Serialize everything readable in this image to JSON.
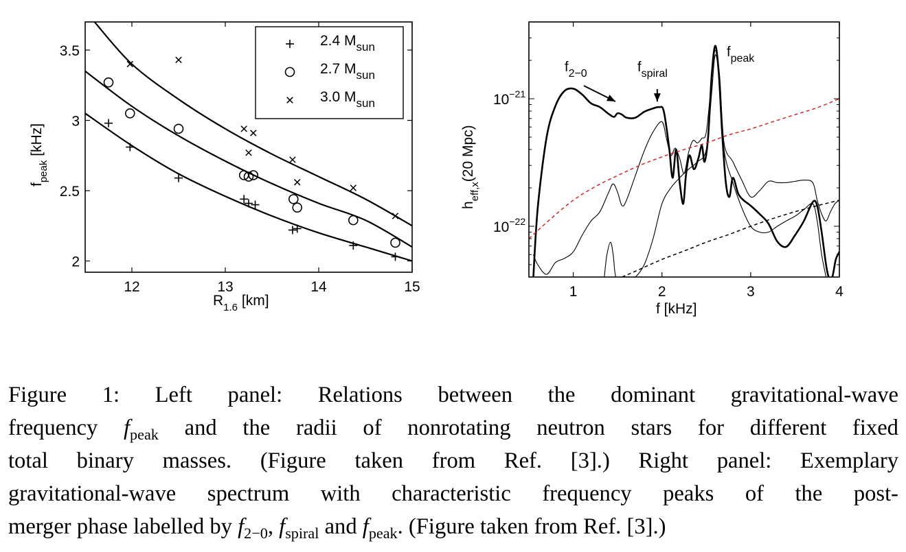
{
  "chart_data": [
    {
      "type": "scatter",
      "panel": "left",
      "xlabel_main": "R",
      "xlabel_sub": "1.6",
      "xlabel_unit": " [km]",
      "ylabel_main": "f",
      "ylabel_sub": "peak",
      "ylabel_unit": " [kHz]",
      "xlim": [
        11.5,
        15
      ],
      "ylim": [
        1.92,
        3.7
      ],
      "xticks": [
        12,
        13,
        14,
        15
      ],
      "yticks": [
        2,
        2.5,
        3,
        3.5
      ],
      "ytick_labels": [
        "2",
        "2.5",
        "3",
        "3.5"
      ],
      "grid": false,
      "legend_position": "top-right",
      "series": [
        {
          "name": "2.4 M",
          "name_sub": "sun",
          "marker": "plus",
          "points": [
            [
              11.75,
              2.98
            ],
            [
              11.98,
              2.81
            ],
            [
              12.5,
              2.59
            ],
            [
              13.2,
              2.44
            ],
            [
              13.25,
              2.41
            ],
            [
              13.32,
              2.4
            ],
            [
              13.72,
              2.22
            ],
            [
              13.77,
              2.23
            ],
            [
              14.37,
              2.11
            ],
            [
              14.82,
              2.03
            ]
          ],
          "fit": [
            [
              11.5,
              3.05
            ],
            [
              12.0,
              2.82
            ],
            [
              12.5,
              2.62
            ],
            [
              13.0,
              2.46
            ],
            [
              13.5,
              2.32
            ],
            [
              14.0,
              2.2
            ],
            [
              14.5,
              2.1
            ],
            [
              15.0,
              2.0
            ]
          ]
        },
        {
          "name": "2.7 M",
          "name_sub": "sun",
          "marker": "circle",
          "points": [
            [
              11.75,
              3.27
            ],
            [
              11.98,
              3.05
            ],
            [
              12.5,
              2.94
            ],
            [
              13.2,
              2.61
            ],
            [
              13.25,
              2.6
            ],
            [
              13.3,
              2.61
            ],
            [
              13.73,
              2.44
            ],
            [
              13.77,
              2.38
            ],
            [
              14.37,
              2.29
            ],
            [
              14.82,
              2.13
            ]
          ],
          "fit": [
            [
              11.5,
              3.35
            ],
            [
              12.0,
              3.1
            ],
            [
              12.5,
              2.89
            ],
            [
              13.0,
              2.71
            ],
            [
              13.5,
              2.55
            ],
            [
              14.0,
              2.41
            ],
            [
              14.5,
              2.29
            ],
            [
              15.0,
              2.1
            ]
          ]
        },
        {
          "name": "3.0 M",
          "name_sub": "sun",
          "marker": "cross",
          "points": [
            [
              11.98,
              3.4
            ],
            [
              12.5,
              3.43
            ],
            [
              13.2,
              2.94
            ],
            [
              13.25,
              2.77
            ],
            [
              13.3,
              2.91
            ],
            [
              13.72,
              2.72
            ],
            [
              13.77,
              2.56
            ],
            [
              14.37,
              2.52
            ],
            [
              14.82,
              2.32
            ]
          ],
          "fit": [
            [
              11.6,
              3.7
            ],
            [
              12.0,
              3.4
            ],
            [
              12.5,
              3.15
            ],
            [
              13.0,
              2.94
            ],
            [
              13.5,
              2.76
            ],
            [
              14.0,
              2.6
            ],
            [
              14.5,
              2.44
            ],
            [
              15.0,
              2.25
            ]
          ]
        }
      ]
    },
    {
      "type": "line",
      "panel": "right",
      "yscale": "log",
      "xlabel": "f [kHz]",
      "ylabel_main": "h",
      "ylabel_sub": "eff,x",
      "ylabel_unit": "(20 Mpc)",
      "xlim": [
        0.5,
        4
      ],
      "ylim": [
        4e-23,
        4e-21
      ],
      "xticks": [
        1,
        2,
        3,
        4
      ],
      "yticks": [
        1e-22,
        1e-21
      ],
      "ytick_base": "10",
      "ytick_exponents": [
        "−22",
        "−21"
      ],
      "grid": false,
      "annotations": [
        {
          "main": "f",
          "sub": "2−0",
          "x": 1.46,
          "y": 8.2e-22
        },
        {
          "main": "f",
          "sub": "spiral",
          "x": 1.97,
          "y": 8.6e-22
        },
        {
          "main": "f",
          "sub": "peak",
          "x": 2.6,
          "y": 2.6e-21
        }
      ],
      "series": [
        {
          "name": "",
          "color": "#000000",
          "style": "thick",
          "points": [
            [
              0.55,
              4e-23
            ],
            [
              0.6,
              1.4e-22
            ],
            [
              0.7,
              5e-22
            ],
            [
              0.8,
              8.8e-22
            ],
            [
              0.9,
              1.15e-21
            ],
            [
              1.0,
              1.2e-21
            ],
            [
              1.1,
              1.08e-21
            ],
            [
              1.2,
              9.2e-22
            ],
            [
              1.3,
              8.6e-22
            ],
            [
              1.4,
              7.6e-22
            ],
            [
              1.46,
              7.2e-22
            ],
            [
              1.5,
              7.7e-22
            ],
            [
              1.55,
              7.5e-22
            ],
            [
              1.6,
              7.1e-22
            ],
            [
              1.7,
              7.1e-22
            ],
            [
              1.8,
              7.9e-22
            ],
            [
              1.9,
              8.4e-22
            ],
            [
              1.97,
              8.6e-22
            ],
            [
              2.02,
              8e-22
            ],
            [
              2.08,
              4.2e-22
            ],
            [
              2.12,
              2.4e-22
            ],
            [
              2.16,
              4e-22
            ],
            [
              2.2,
              2.2e-22
            ],
            [
              2.24,
              1.5e-22
            ],
            [
              2.27,
              2.5e-22
            ],
            [
              2.31,
              3.6e-22
            ],
            [
              2.36,
              2.8e-22
            ],
            [
              2.41,
              3.4e-22
            ],
            [
              2.45,
              4.3e-22
            ],
            [
              2.48,
              3.2e-22
            ],
            [
              2.52,
              5e-22
            ],
            [
              2.56,
              1.5e-21
            ],
            [
              2.6,
              2.6e-21
            ],
            [
              2.64,
              1.6e-21
            ],
            [
              2.68,
              5.2e-22
            ],
            [
              2.72,
              2.2e-22
            ],
            [
              2.76,
              1.7e-22
            ],
            [
              2.8,
              2.4e-22
            ],
            [
              2.86,
              1.8e-22
            ],
            [
              2.92,
              1.6e-22
            ],
            [
              3.0,
              1.45e-22
            ],
            [
              3.1,
              1.25e-22
            ],
            [
              3.2,
              1.05e-22
            ],
            [
              3.3,
              7.6e-23
            ],
            [
              3.4,
              6.9e-23
            ],
            [
              3.5,
              8.5e-23
            ],
            [
              3.6,
              1.1e-22
            ],
            [
              3.7,
              1.55e-22
            ],
            [
              3.75,
              1.45e-22
            ],
            [
              3.8,
              9e-23
            ],
            [
              3.85,
              5e-23
            ],
            [
              3.88,
              4e-23
            ],
            [
              3.92,
              4e-23
            ],
            [
              3.96,
              5.5e-23
            ],
            [
              4.0,
              6.3e-23
            ]
          ]
        },
        {
          "name": "",
          "color": "#000000",
          "style": "thin-1",
          "points": [
            [
              0.55,
              6e-23
            ],
            [
              0.6,
              5e-23
            ],
            [
              0.7,
              4.2e-23
            ],
            [
              0.8,
              5.2e-23
            ],
            [
              0.9,
              5.6e-23
            ],
            [
              1.0,
              6.3e-23
            ],
            [
              1.1,
              8.5e-23
            ],
            [
              1.2,
              1.1e-22
            ],
            [
              1.3,
              1.3e-22
            ],
            [
              1.4,
              1.85e-22
            ],
            [
              1.45,
              2.15e-22
            ],
            [
              1.5,
              1.85e-22
            ],
            [
              1.55,
              1.45e-22
            ],
            [
              1.6,
              1.6e-22
            ],
            [
              1.7,
              2.5e-22
            ],
            [
              1.8,
              3.9e-22
            ],
            [
              1.9,
              5.5e-22
            ],
            [
              2.0,
              6.6e-22
            ],
            [
              2.05,
              4.9e-22
            ],
            [
              2.1,
              3.6e-22
            ],
            [
              2.15,
              4.1e-22
            ],
            [
              2.2,
              3.4e-22
            ],
            [
              2.25,
              2.6e-22
            ],
            [
              2.3,
              3.8e-22
            ],
            [
              2.35,
              4.7e-22
            ],
            [
              2.4,
              4.5e-22
            ],
            [
              2.45,
              4.9e-22
            ],
            [
              2.5,
              5.5e-22
            ],
            [
              2.56,
              1.4e-21
            ],
            [
              2.6,
              2.4e-21
            ],
            [
              2.65,
              1.5e-21
            ],
            [
              2.7,
              4.5e-22
            ],
            [
              2.8,
              3.2e-22
            ],
            [
              2.9,
              2.3e-22
            ],
            [
              3.0,
              1.7e-22
            ],
            [
              3.1,
              1.9e-22
            ],
            [
              3.2,
              2.25e-22
            ],
            [
              3.3,
              2.2e-22
            ],
            [
              3.4,
              2.2e-22
            ],
            [
              3.5,
              2.25e-22
            ],
            [
              3.6,
              2.3e-22
            ],
            [
              3.7,
              2.2e-22
            ],
            [
              3.75,
              1.6e-22
            ],
            [
              3.8,
              1.25e-22
            ],
            [
              3.85,
              1.1e-22
            ],
            [
              3.9,
              1.3e-22
            ],
            [
              3.95,
              1.5e-22
            ],
            [
              4.0,
              1.6e-22
            ]
          ]
        },
        {
          "name": "",
          "color": "#000000",
          "style": "thin-2",
          "points": [
            [
              1.35,
              4e-23
            ],
            [
              1.38,
              6e-23
            ],
            [
              1.42,
              7.5e-23
            ],
            [
              1.45,
              6e-23
            ],
            [
              1.48,
              4e-23
            ],
            [
              1.55,
              4e-23
            ],
            [
              1.6,
              4e-23
            ],
            [
              1.65,
              4e-23
            ],
            [
              1.7,
              4e-23
            ],
            [
              1.8,
              5e-23
            ],
            [
              1.9,
              8e-23
            ],
            [
              2.0,
              1.5e-22
            ],
            [
              2.1,
              2e-22
            ],
            [
              2.2,
              2.4e-22
            ],
            [
              2.3,
              2.8e-22
            ],
            [
              2.4,
              3.2e-22
            ],
            [
              2.5,
              4e-22
            ],
            [
              2.56,
              1.1e-21
            ],
            [
              2.6,
              2.2e-21
            ],
            [
              2.65,
              1.4e-21
            ],
            [
              2.7,
              4e-22
            ],
            [
              2.8,
              2.2e-22
            ],
            [
              2.9,
              1.4e-22
            ],
            [
              3.0,
              1e-22
            ],
            [
              3.1,
              9e-23
            ],
            [
              3.2,
              9e-23
            ],
            [
              3.3,
              1e-22
            ],
            [
              3.4,
              1.1e-22
            ],
            [
              3.5,
              1.2e-22
            ],
            [
              3.6,
              1.35e-22
            ],
            [
              3.7,
              1.5e-22
            ],
            [
              3.75,
              1.1e-22
            ],
            [
              3.8,
              6e-23
            ],
            [
              3.85,
              4e-23
            ]
          ]
        },
        {
          "name": "",
          "color": "#d62728",
          "style": "dashed",
          "points": [
            [
              0.5,
              8e-23
            ],
            [
              0.75,
              1.15e-22
            ],
            [
              1.0,
              1.6e-22
            ],
            [
              1.25,
              2.05e-22
            ],
            [
              1.5,
              2.5e-22
            ],
            [
              1.75,
              3e-22
            ],
            [
              2.0,
              3.5e-22
            ],
            [
              2.25,
              4e-22
            ],
            [
              2.5,
              4.5e-22
            ],
            [
              2.75,
              5.2e-22
            ],
            [
              3.0,
              5.8e-22
            ],
            [
              3.25,
              6.6e-22
            ],
            [
              3.5,
              7.5e-22
            ],
            [
              3.75,
              8.5e-22
            ],
            [
              4.0,
              1e-21
            ]
          ]
        },
        {
          "name": "",
          "color": "#000000",
          "style": "dashed",
          "points": [
            [
              1.55,
              4e-23
            ],
            [
              1.75,
              4.6e-23
            ],
            [
              2.0,
              5.5e-23
            ],
            [
              2.25,
              6.4e-23
            ],
            [
              2.5,
              7.5e-23
            ],
            [
              2.75,
              8.6e-23
            ],
            [
              3.0,
              1e-22
            ],
            [
              3.25,
              1.15e-22
            ],
            [
              3.5,
              1.3e-22
            ],
            [
              3.75,
              1.45e-22
            ],
            [
              4.0,
              1.6e-22
            ]
          ]
        }
      ]
    }
  ],
  "caption": {
    "line1": "Figure 1: Left panel: Relations between the dominant gravitational-wave",
    "line2_a": "frequency ",
    "line2_f": "f",
    "line2_sub": "peak",
    "line2_b": " and the radii of nonrotating neutron stars for different fixed",
    "line3": "total binary masses. (Figure taken from Ref. [3].) Right panel: Exemplary",
    "line4": "gravitational-wave spectrum with characteristic frequency peaks of the post-",
    "line5_a": "merger phase labelled by ",
    "f1": "f",
    "f1_sub": "2−0",
    "sep1": ", ",
    "f2": "f",
    "f2_sub": "spiral",
    "sep2": " and ",
    "f3": "f",
    "f3_sub": "peak",
    "line5_b": ". (Figure taken from Ref. [3].)"
  }
}
